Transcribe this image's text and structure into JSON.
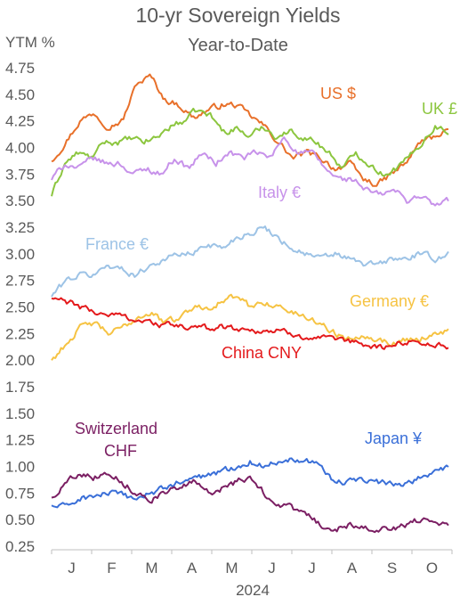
{
  "chart_data": {
    "type": "line",
    "title": "10-yr Sovereign Yields",
    "subtitle": "Year-to-Date",
    "ylabel": "YTM %",
    "xlabel": "2024",
    "ylim": [
      0.25,
      4.75
    ],
    "yticks": [
      "4.75",
      "4.50",
      "4.25",
      "4.00",
      "3.75",
      "3.50",
      "3.25",
      "3.00",
      "2.75",
      "2.50",
      "2.25",
      "2.00",
      "1.75",
      "1.50",
      "1.25",
      "1.00",
      "0.75",
      "0.50",
      "0.25"
    ],
    "xticks": [
      "J",
      "F",
      "M",
      "A",
      "M",
      "J",
      "J",
      "A",
      "S",
      "O"
    ],
    "grid": false,
    "legend": "inline labels",
    "series": [
      {
        "name": "US $",
        "color": "#E8702A",
        "months": [
          3.88,
          4.05,
          4.25,
          4.33,
          4.2,
          4.25,
          4.6,
          4.67,
          4.45,
          4.4,
          4.28,
          4.35,
          4.4,
          4.4,
          4.3,
          4.2,
          4.05,
          3.9,
          3.95,
          3.9,
          3.8,
          3.85,
          3.7,
          3.65,
          3.75,
          3.85,
          4.05,
          4.1,
          4.18
        ]
      },
      {
        "name": "UK £",
        "color": "#8CC63F",
        "months": [
          3.55,
          3.85,
          3.95,
          3.9,
          4.05,
          4.05,
          4.08,
          4.05,
          4.1,
          4.2,
          4.25,
          4.35,
          4.3,
          4.15,
          4.18,
          4.1,
          4.2,
          4.1,
          4.15,
          4.1,
          4.05,
          3.95,
          3.8,
          3.95,
          3.85,
          3.75,
          3.8,
          3.9,
          4.05,
          4.2,
          4.15
        ]
      },
      {
        "name": "Italy €",
        "color": "#C792EA",
        "months": [
          3.7,
          3.85,
          3.8,
          3.9,
          3.85,
          3.85,
          3.75,
          3.8,
          3.75,
          3.9,
          3.8,
          3.95,
          3.85,
          3.95,
          3.9,
          3.95,
          3.9,
          4.1,
          3.95,
          3.95,
          3.8,
          3.7,
          3.7,
          3.6,
          3.55,
          3.6,
          3.5,
          3.55,
          3.45,
          3.5
        ]
      },
      {
        "name": "France €",
        "color": "#9DC3E6",
        "months": [
          2.6,
          2.75,
          2.8,
          2.8,
          2.9,
          2.85,
          2.8,
          2.9,
          2.95,
          3.0,
          3.0,
          3.1,
          3.05,
          3.15,
          3.2,
          3.25,
          3.15,
          3.05,
          3.0,
          2.95,
          3.0,
          2.95,
          2.9,
          2.9,
          2.95,
          2.95,
          3.0,
          2.95,
          3.0
        ]
      },
      {
        "name": "Germany €",
        "color": "#F6C343",
        "months": [
          2.0,
          2.15,
          2.3,
          2.35,
          2.25,
          2.3,
          2.4,
          2.45,
          2.35,
          2.4,
          2.5,
          2.5,
          2.55,
          2.6,
          2.5,
          2.55,
          2.5,
          2.45,
          2.4,
          2.35,
          2.25,
          2.2,
          2.25,
          2.2,
          2.15,
          2.2,
          2.2,
          2.25,
          2.28
        ]
      },
      {
        "name": "China CNY",
        "color": "#E41A1C",
        "months": [
          2.58,
          2.55,
          2.5,
          2.45,
          2.43,
          2.42,
          2.38,
          2.35,
          2.33,
          2.32,
          2.3,
          2.3,
          2.32,
          2.3,
          2.28,
          2.28,
          2.27,
          2.25,
          2.22,
          2.2,
          2.18,
          2.17,
          2.15,
          2.12,
          2.13,
          2.18,
          2.17,
          2.15,
          2.12
        ]
      },
      {
        "name": "Japan ¥",
        "color": "#3A6FD8",
        "months": [
          0.63,
          0.62,
          0.7,
          0.72,
          0.75,
          0.72,
          0.7,
          0.75,
          0.8,
          0.85,
          0.88,
          0.92,
          0.95,
          1.0,
          1.05,
          1.0,
          1.05,
          1.08,
          1.06,
          1.02,
          0.85,
          0.85,
          0.88,
          0.85,
          0.83,
          0.85,
          0.9,
          0.95,
          0.98
        ]
      },
      {
        "name": "Switzerland CHF",
        "color": "#7B1F63",
        "months": [
          0.7,
          0.85,
          0.95,
          0.9,
          0.95,
          0.85,
          0.75,
          0.7,
          0.75,
          0.8,
          0.85,
          0.75,
          0.8,
          0.85,
          0.9,
          0.75,
          0.65,
          0.6,
          0.55,
          0.45,
          0.4,
          0.45,
          0.45,
          0.4,
          0.42,
          0.45,
          0.5,
          0.5,
          0.45
        ]
      }
    ],
    "labels": {
      "us": "US $",
      "uk": "UK £",
      "italy": "Italy €",
      "france": "France €",
      "germany": "Germany €",
      "china": "China CNY",
      "japan": "Japan ¥",
      "swiss_1": "Switzerland",
      "swiss_2": "CHF"
    }
  }
}
